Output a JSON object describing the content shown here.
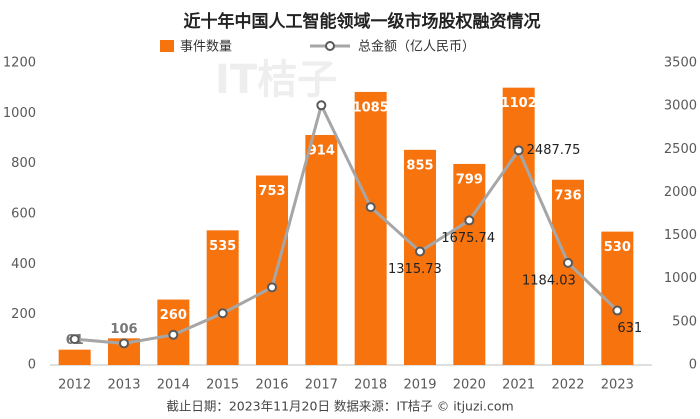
{
  "chart_data": {
    "type": "bar-line",
    "title": "近十年中国人工智能领域一级市场股权融资情况",
    "watermark": "IT桔子",
    "source": "截止日期：2023年11月20日    数据来源：IT桔子 © itjuzi.com",
    "categories": [
      "2012",
      "2013",
      "2014",
      "2015",
      "2016",
      "2017",
      "2018",
      "2019",
      "2020",
      "2021",
      "2022",
      "2023"
    ],
    "series": [
      {
        "name": "事件数量",
        "type": "bar",
        "color": "#f7730e",
        "values": [
          61,
          106,
          260,
          535,
          753,
          914,
          1085,
          855,
          799,
          1102,
          736,
          530
        ]
      },
      {
        "name": "总金额（亿人民币）",
        "type": "line",
        "axis": "y2",
        "color": "#a6a6a6",
        "values": [
          300,
          250,
          350,
          600,
          900,
          3010,
          1830,
          1315.73,
          1675.74,
          2487.75,
          1184.03,
          631
        ],
        "value_labels": [
          null,
          null,
          null,
          null,
          null,
          null,
          null,
          "1315.73",
          "1675.74",
          "2487.75",
          "1184.03",
          "631"
        ]
      }
    ],
    "ylim": [
      0,
      1200
    ],
    "yticks": [
      0,
      200,
      400,
      600,
      800,
      1000,
      1200
    ],
    "y2lim": [
      0,
      3500
    ],
    "y2ticks": [
      0,
      500,
      1000,
      1500,
      2000,
      2500,
      3000,
      3500
    ],
    "grid": false
  }
}
